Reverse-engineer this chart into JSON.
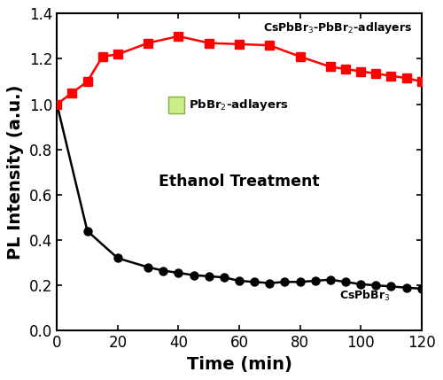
{
  "black_x": [
    0,
    10,
    20,
    30,
    35,
    40,
    45,
    50,
    55,
    60,
    65,
    70,
    75,
    80,
    85,
    90,
    95,
    100,
    105,
    110,
    115,
    120
  ],
  "black_y": [
    1.0,
    0.44,
    0.32,
    0.28,
    0.265,
    0.255,
    0.245,
    0.24,
    0.235,
    0.22,
    0.215,
    0.21,
    0.215,
    0.215,
    0.22,
    0.225,
    0.215,
    0.205,
    0.2,
    0.195,
    0.19,
    0.185
  ],
  "red_x": [
    0,
    5,
    10,
    15,
    20,
    30,
    40,
    50,
    60,
    70,
    80,
    90,
    95,
    100,
    105,
    110,
    115,
    120
  ],
  "red_y": [
    1.0,
    1.05,
    1.1,
    1.21,
    1.22,
    1.27,
    1.3,
    1.27,
    1.265,
    1.26,
    1.21,
    1.165,
    1.155,
    1.145,
    1.135,
    1.125,
    1.115,
    1.1
  ],
  "xlabel": "Time (min)",
  "ylabel": "PL Intensity (a.u.)",
  "xlim": [
    0,
    120
  ],
  "ylim": [
    0.0,
    1.4
  ],
  "xticks": [
    0,
    20,
    40,
    60,
    80,
    100,
    120
  ],
  "yticks": [
    0.0,
    0.2,
    0.4,
    0.6,
    0.8,
    1.0,
    1.2,
    1.4
  ],
  "black_color": "#000000",
  "red_color": "#ff0000",
  "label_black": "CsPbBr$_3$",
  "label_red": "CsPbBr$_3$-PbBr$_2$-adlayers",
  "annotation_ethanol": "Ethanol Treatment",
  "annotation_pbbr2": "PbBr$_2$-adlayers",
  "green_swatch_color": "#ccee88",
  "green_swatch_edge": "#88aa44",
  "background_color": "#ffffff",
  "axis_fontsize": 14,
  "tick_fontsize": 12,
  "linewidth": 1.8,
  "markersize": 6.5
}
